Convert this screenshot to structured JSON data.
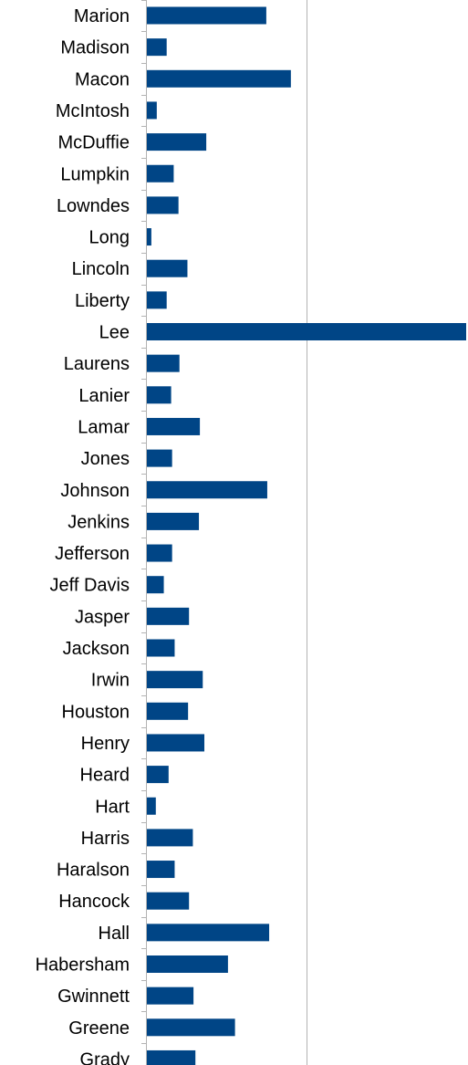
{
  "chart_data": {
    "type": "bar",
    "orientation": "horizontal",
    "title": "",
    "xlabel": "",
    "ylabel": "",
    "grid": true,
    "legend": "none",
    "bar_color": "#004586",
    "xlim": [
      0,
      100
    ],
    "gridlines_at": [
      0,
      50
    ],
    "categories": [
      "Marion",
      "Madison",
      "Macon",
      "McIntosh",
      "McDuffie",
      "Lumpkin",
      "Lowndes",
      "Long",
      "Lincoln",
      "Liberty",
      "Lee",
      "Laurens",
      "Lanier",
      "Lamar",
      "Jones",
      "Johnson",
      "Jenkins",
      "Jefferson",
      "Jeff Davis",
      "Jasper",
      "Jackson",
      "Irwin",
      "Houston",
      "Henry",
      "Heard",
      "Hart",
      "Harris",
      "Haralson",
      "Hancock",
      "Hall",
      "Habersham",
      "Gwinnett",
      "Greene",
      "Grady"
    ],
    "values": [
      37.4,
      6.2,
      45.1,
      3.1,
      18.6,
      8.4,
      9.9,
      1.4,
      12.7,
      6.2,
      100,
      10.2,
      7.6,
      16.6,
      7.9,
      37.7,
      16.3,
      7.9,
      5.3,
      13.2,
      8.7,
      17.5,
      12.9,
      18.0,
      6.8,
      2.8,
      14.4,
      8.7,
      13.2,
      38.3,
      25.4,
      14.6,
      27.6,
      15.2
    ]
  }
}
